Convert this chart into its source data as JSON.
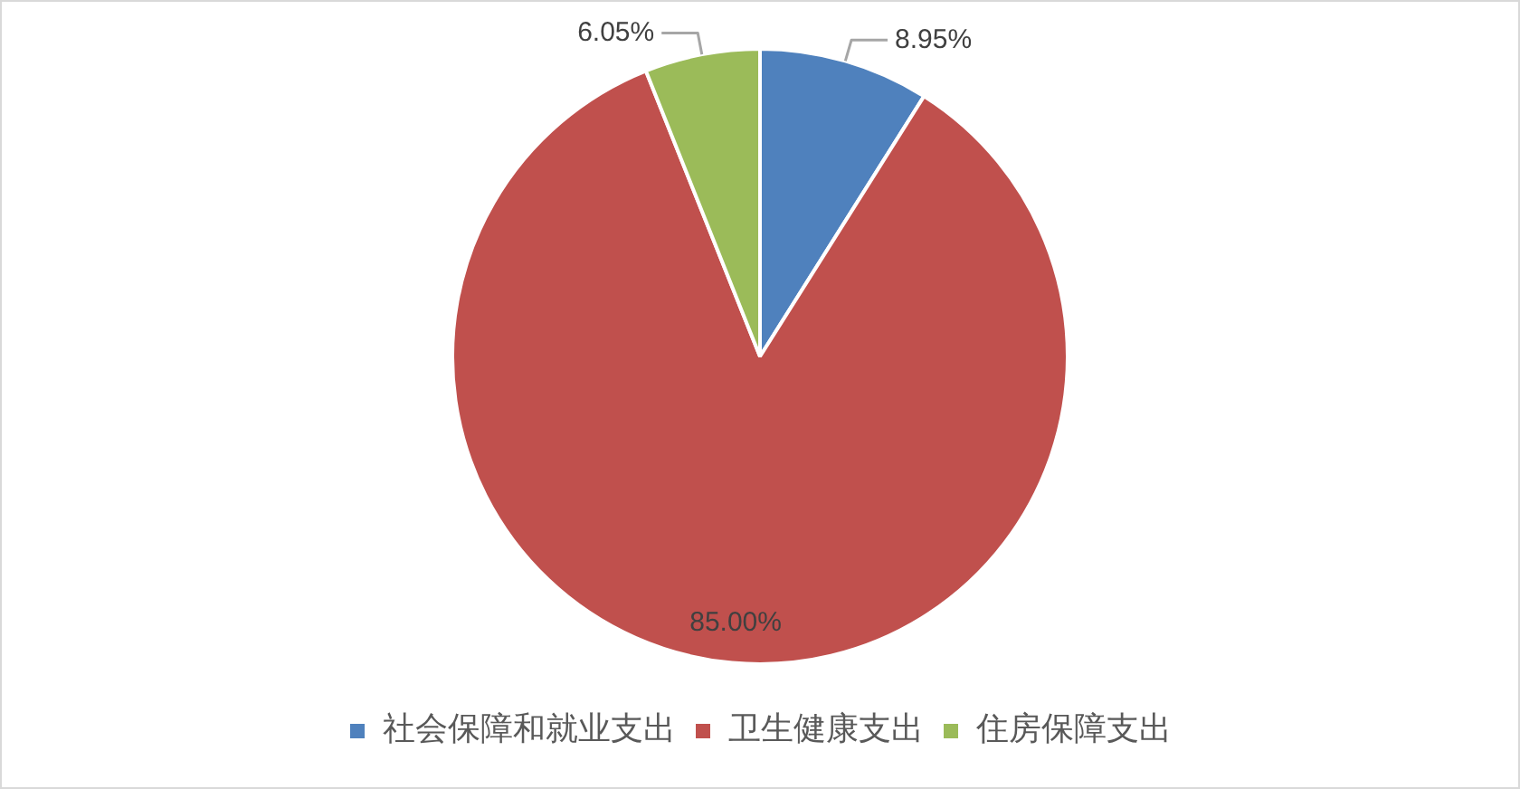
{
  "chart_data": {
    "type": "pie",
    "categories": [
      "社会保障和就业支出",
      "卫生健康支出",
      "住房保障支出"
    ],
    "values": [
      8.95,
      85.0,
      6.05
    ],
    "colors": [
      "#4f81bd",
      "#c0504d",
      "#9bbb59"
    ],
    "value_labels": [
      "8.95%",
      "85.00%",
      "6.05%"
    ],
    "legend": "bottom"
  }
}
